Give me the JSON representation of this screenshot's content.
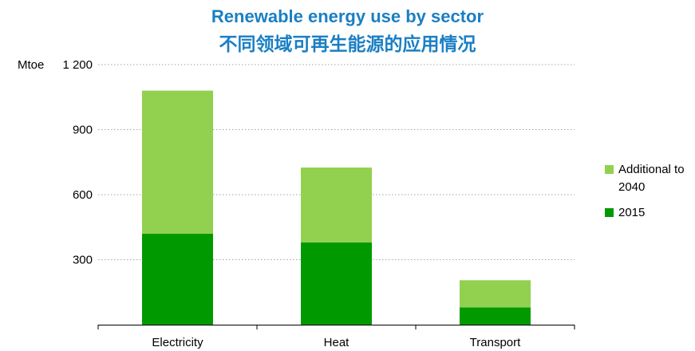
{
  "chart_data": {
    "type": "bar",
    "stacked": true,
    "title": "Renewable energy use by sector",
    "subtitle": "不同领域可再生能源的应用情况",
    "ylabel": "Mtoe",
    "ylim": [
      0,
      1200
    ],
    "yticks": [
      300,
      600,
      900,
      1200
    ],
    "ytick_labels": [
      "300",
      "600",
      "900",
      "1 200"
    ],
    "grid": true,
    "legend_position": "right",
    "categories": [
      "Electricity",
      "Heat",
      "Transport"
    ],
    "series": [
      {
        "name": "2015",
        "color": "#009a00",
        "values": [
          420,
          380,
          80
        ]
      },
      {
        "name": "Additional to 2040",
        "color": "#92d050",
        "values": [
          660,
          345,
          125
        ]
      }
    ]
  }
}
